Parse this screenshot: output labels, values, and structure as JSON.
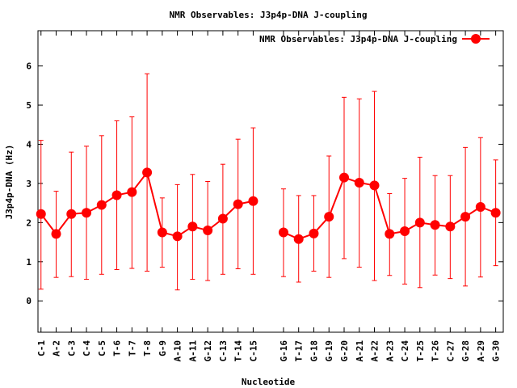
{
  "chart_data": {
    "type": "line",
    "title": "NMR Observables: J3p4p-DNA J-coupling",
    "xlabel": "Nucleotide",
    "ylabel": "J3p4p-DNA (Hz)",
    "ylim": [
      -0.8,
      6.9
    ],
    "yticks": [
      0,
      1,
      2,
      3,
      4,
      5,
      6
    ],
    "grid": false,
    "legend_position": "top-right",
    "color": "#ff0000",
    "series": [
      {
        "name": "NMR Observables: J3p4p-DNA J-coupling",
        "segments": [
          {
            "categories": [
              "C-1",
              "A-2",
              "C-3",
              "C-4",
              "C-5",
              "T-6",
              "T-7",
              "T-8",
              "G-9",
              "A-10",
              "A-11",
              "G-12",
              "C-13",
              "T-14",
              "C-15"
            ],
            "values": [
              2.22,
              1.71,
              2.22,
              2.25,
              2.45,
              2.7,
              2.78,
              3.28,
              1.75,
              1.65,
              1.9,
              1.8,
              2.1,
              2.47,
              2.55
            ],
            "err_low": [
              0.3,
              0.6,
              0.62,
              0.55,
              0.68,
              0.8,
              0.83,
              0.76,
              0.86,
              0.28,
              0.55,
              0.52,
              0.68,
              0.82,
              0.68
            ],
            "err_high": [
              4.1,
              2.8,
              3.8,
              3.95,
              4.22,
              4.6,
              4.7,
              5.8,
              2.63,
              2.97,
              3.23,
              3.05,
              3.49,
              4.13,
              4.42
            ]
          },
          {
            "categories": [
              "G-16",
              "T-17",
              "G-18",
              "G-19",
              "G-20",
              "A-21",
              "A-22",
              "A-23",
              "C-24",
              "T-25",
              "T-26",
              "C-27",
              "G-28",
              "A-29",
              "G-30"
            ],
            "values": [
              1.75,
              1.58,
              1.72,
              2.15,
              3.15,
              3.02,
              2.95,
              1.71,
              1.78,
              2.0,
              1.94,
              1.9,
              2.15,
              2.4,
              2.25
            ],
            "err_low": [
              0.62,
              0.48,
              0.76,
              0.6,
              1.08,
              0.86,
              0.52,
              0.65,
              0.43,
              0.34,
              0.66,
              0.57,
              0.38,
              0.61,
              0.9
            ],
            "err_high": [
              2.86,
              2.69,
              2.69,
              3.7,
              5.2,
              5.16,
              5.35,
              2.74,
              3.13,
              3.67,
              3.2,
              3.2,
              3.92,
              4.17,
              3.6
            ]
          }
        ]
      }
    ]
  }
}
